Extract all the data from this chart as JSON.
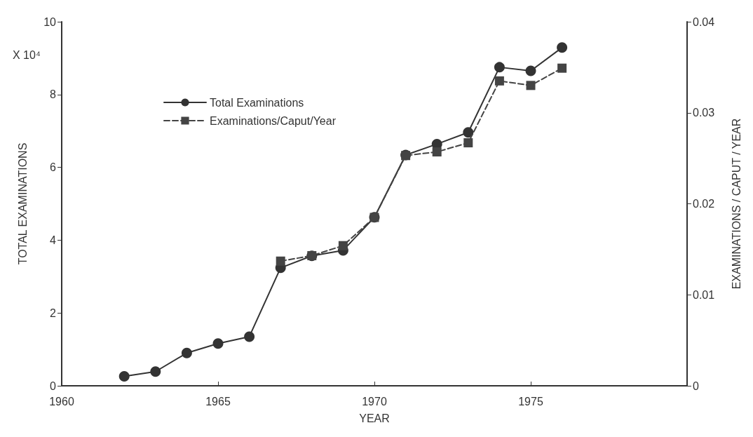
{
  "chart_data": {
    "type": "line",
    "xlabel": "YEAR",
    "ylabel": "TOTAL EXAMINATIONS",
    "y2label": "EXAMINATIONS / CAPUT / YEAR",
    "annotations": [
      "X 10⁴"
    ],
    "x": [
      1962,
      1963,
      1964,
      1965,
      1966,
      1967,
      1968,
      1969,
      1970,
      1971,
      1972,
      1973,
      1974,
      1975,
      1976
    ],
    "series": [
      {
        "name": "Total Examinations",
        "color": "#333333",
        "marker": "circle",
        "line_style": "solid",
        "values": [
          0.26,
          0.39,
          0.9,
          1.16,
          1.35,
          3.24,
          3.57,
          3.72,
          4.63,
          6.34,
          6.64,
          6.96,
          8.75,
          8.65,
          9.29
        ]
      },
      {
        "name": "Examinations/Caput/Year",
        "color": "#444444",
        "marker": "square",
        "line_style": "dashed",
        "axis": "y2",
        "x": [
          1967,
          1968,
          1969,
          1970,
          1971,
          1972,
          1973,
          1974,
          1975,
          1976
        ],
        "values": [
          0.0137,
          0.0143,
          0.0154,
          0.0185,
          0.0253,
          0.0257,
          0.0267,
          0.0335,
          0.033,
          0.0349
        ]
      }
    ],
    "xlim": [
      1960,
      1980
    ],
    "xticks": [
      1960,
      1965,
      1970,
      1975
    ],
    "ylim": [
      0,
      10
    ],
    "yticks": [
      0,
      2,
      4,
      6,
      8,
      10
    ],
    "y2lim": [
      0,
      0.04
    ],
    "y2ticks": [
      0,
      0.01,
      0.02,
      0.03,
      0.04
    ],
    "grid": false,
    "legend": "top left"
  }
}
